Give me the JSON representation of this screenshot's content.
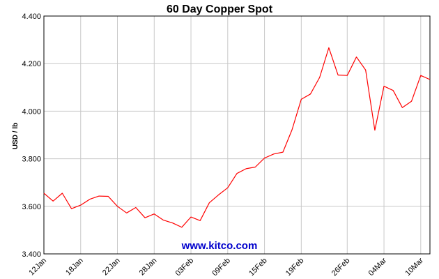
{
  "chart_data": {
    "type": "line",
    "title": "60 Day Copper Spot",
    "xlabel": "",
    "ylabel": "USD / lb",
    "ylim": [
      3.4,
      4.4
    ],
    "y_ticks": [
      "3.400",
      "3.600",
      "3.800",
      "4.000",
      "4.200",
      "4.400"
    ],
    "x_tick_labels": [
      "12Jan",
      "18Jan",
      "22Jan",
      "28Jan",
      "03Feb",
      "09Feb",
      "15Feb",
      "19Feb",
      "26Feb",
      "04Mar",
      "10Mar"
    ],
    "grid": true,
    "line_color": "#ff0000",
    "watermark": "www.kitco.com",
    "watermark_color": "#0000cc",
    "x": [
      "12Jan",
      "13Jan",
      "14Jan",
      "15Jan",
      "18Jan",
      "19Jan",
      "20Jan",
      "21Jan",
      "22Jan",
      "25Jan",
      "26Jan",
      "27Jan",
      "28Jan",
      "29Jan",
      "01Feb",
      "02Feb",
      "03Feb",
      "04Feb",
      "05Feb",
      "08Feb",
      "09Feb",
      "10Feb",
      "11Feb",
      "12Feb",
      "15Feb",
      "16Feb",
      "17Feb",
      "18Feb",
      "19Feb",
      "22Feb",
      "23Feb",
      "24Feb",
      "25Feb",
      "26Feb",
      "01Mar",
      "02Mar",
      "03Mar",
      "04Mar",
      "05Mar",
      "08Mar",
      "09Mar",
      "10Mar",
      "11Mar"
    ],
    "values": [
      3.655,
      3.622,
      3.655,
      3.59,
      3.605,
      3.63,
      3.643,
      3.642,
      3.6,
      3.572,
      3.595,
      3.552,
      3.568,
      3.542,
      3.53,
      3.512,
      3.555,
      3.54,
      3.615,
      3.648,
      3.678,
      3.738,
      3.758,
      3.765,
      3.803,
      3.82,
      3.828,
      3.922,
      4.05,
      4.072,
      4.142,
      4.267,
      4.152,
      4.15,
      4.228,
      4.173,
      3.92,
      4.105,
      4.087,
      4.015,
      4.042,
      4.15,
      4.133
    ]
  }
}
